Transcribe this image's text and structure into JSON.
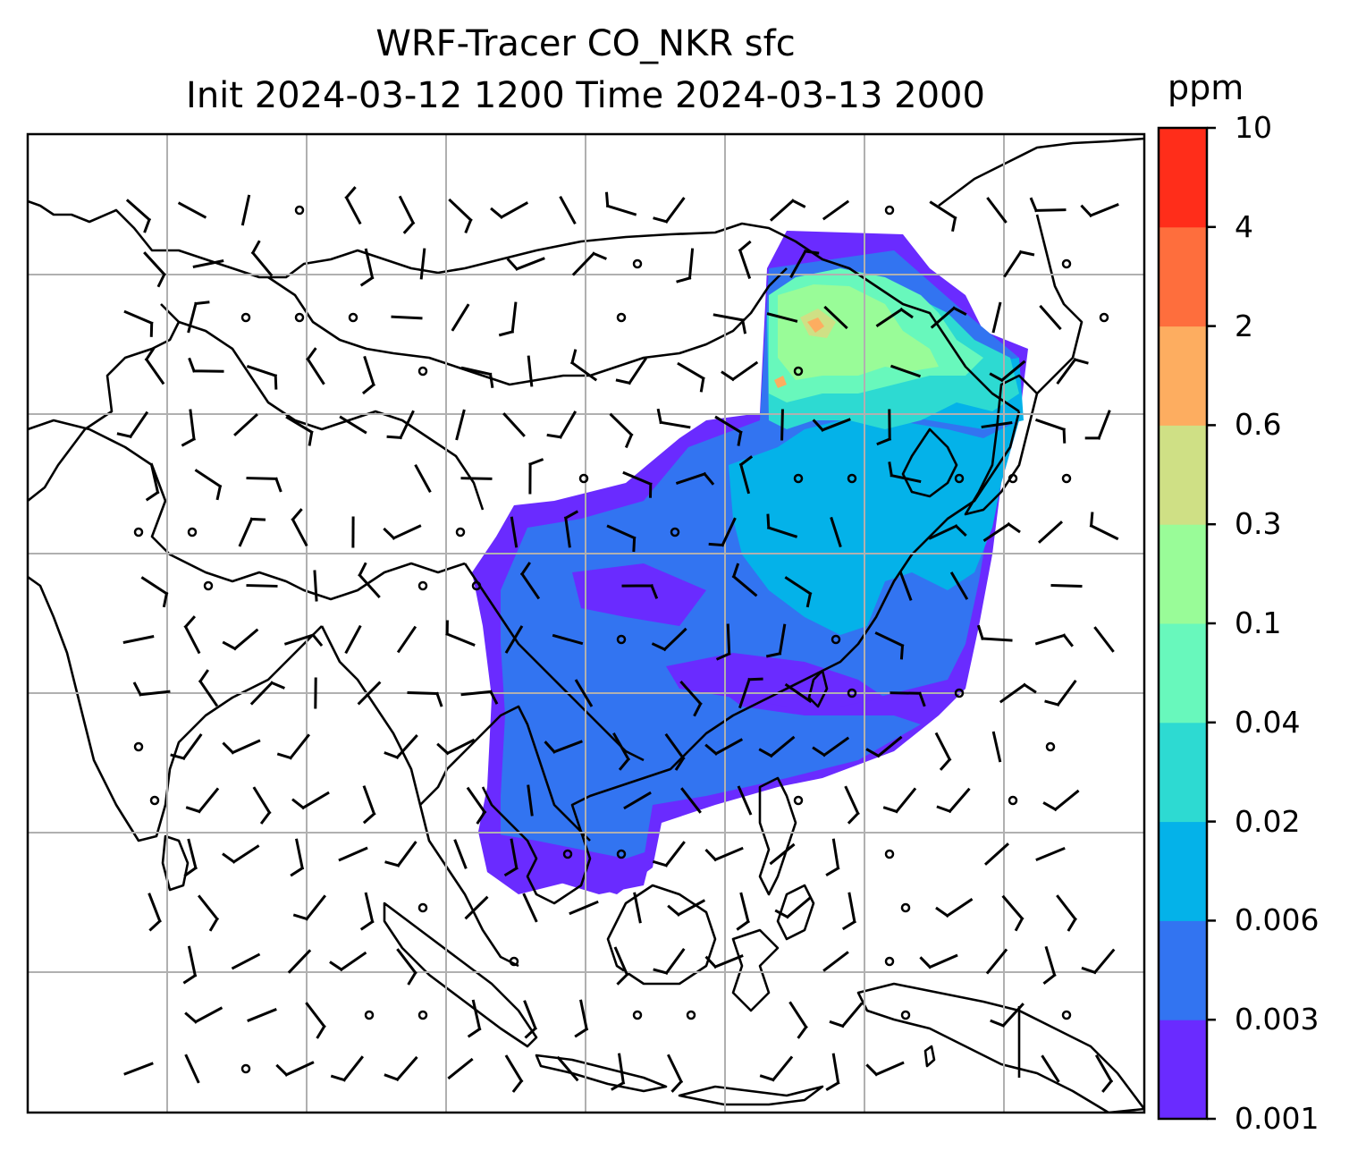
{
  "title_line1": "WRF-Tracer CO_NKR sfc",
  "title_line2": "Init 2024-03-12 1200 Time 2024-03-13 2000",
  "colorbar": {
    "unit": "ppm",
    "levels": [
      "0.001",
      "0.003",
      "0.006",
      "0.02",
      "0.04",
      "0.1",
      "0.3",
      "0.6",
      "2",
      "4",
      "10"
    ],
    "colors": [
      "#6a2bff",
      "#3274f1",
      "#04b2e9",
      "#2ddad2",
      "#68f8bc",
      "#99fc98",
      "#cfe085",
      "#fdad60",
      "#fe6e3d",
      "#ff2d1a"
    ]
  }
}
